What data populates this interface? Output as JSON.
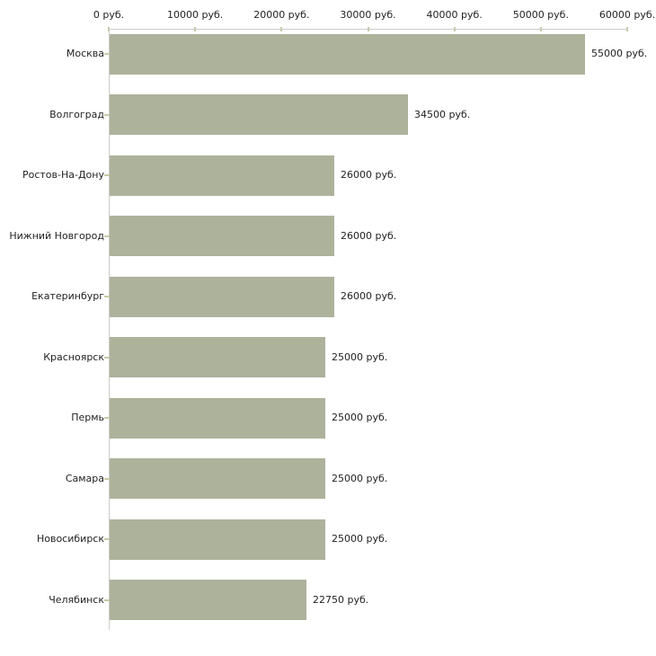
{
  "chart_data": {
    "type": "bar",
    "orientation": "horizontal",
    "title": "",
    "xlabel": "",
    "ylabel": "",
    "grid": false,
    "legend": false,
    "xlim": [
      0,
      60000
    ],
    "x_ticks": [
      0,
      10000,
      20000,
      30000,
      40000,
      50000,
      60000
    ],
    "x_tick_labels": [
      "0 руб.",
      "10000 руб.",
      "20000 руб.",
      "30000 руб.",
      "40000 руб.",
      "50000 руб.",
      "60000 руб."
    ],
    "categories": [
      "Москва",
      "Волгоград",
      "Ростов-На-Дону",
      "Нижний Новгород",
      "Екатеринбург",
      "Красноярск",
      "Пермь",
      "Самара",
      "Новосибирск",
      "Челябинск"
    ],
    "values": [
      55000,
      34500,
      26000,
      26000,
      26000,
      25000,
      25000,
      25000,
      25000,
      22750
    ],
    "value_labels": [
      "55000 руб.",
      "34500 руб.",
      "26000 руб.",
      "26000 руб.",
      "26000 руб.",
      "25000 руб.",
      "25000 руб.",
      "25000 руб.",
      "25000 руб.",
      "22750 руб."
    ]
  },
  "style": {
    "background": "#ffffff",
    "bar_color": "#adb29b",
    "axis_line_color": "#cbcbcb",
    "tick_color": "#c9c9a6",
    "text_color": "#222222"
  }
}
